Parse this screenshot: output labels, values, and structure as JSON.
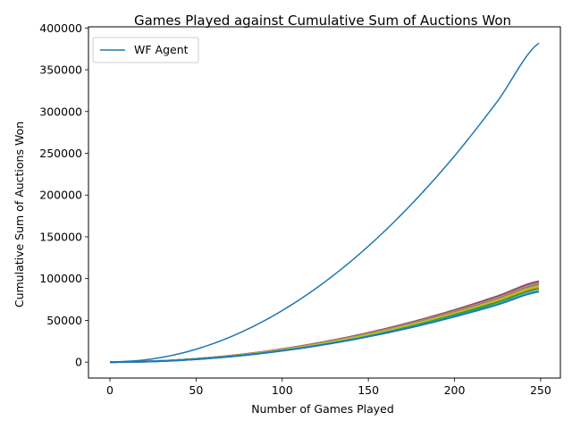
{
  "chart_data": {
    "type": "line",
    "title": "Games Played against Cumulative Sum of Auctions Won",
    "xlabel": "Number of Games Played",
    "ylabel": "Cumulative Sum of Auctions Won",
    "xlim": [
      -12.45,
      261.45
    ],
    "ylim": [
      -19115,
      401415
    ],
    "xticks": [
      0,
      50,
      100,
      150,
      200,
      250
    ],
    "yticks": [
      0,
      50000,
      100000,
      150000,
      200000,
      250000,
      300000,
      350000,
      400000
    ],
    "grid": false,
    "legend": {
      "placement": "top-left",
      "entries": [
        "WF Agent"
      ]
    },
    "series": [
      {
        "name": "WF Agent",
        "color": "#1f77b4",
        "x": [
          0,
          25,
          50,
          75,
          100,
          125,
          150,
          175,
          200,
          225,
          249
        ],
        "y": [
          0,
          3900,
          15400,
          34700,
          61700,
          96400,
          138800,
          189000,
          246800,
          312400,
          382000
        ]
      },
      {
        "color": "#ff7f0e",
        "x": [
          0,
          25,
          50,
          75,
          100,
          125,
          150,
          175,
          200,
          225,
          249
        ],
        "y": [
          0,
          900,
          3600,
          8100,
          14300,
          22400,
          32300,
          43900,
          57400,
          72600,
          89000
        ]
      },
      {
        "color": "#2ca02c",
        "x": [
          0,
          25,
          50,
          75,
          100,
          125,
          150,
          175,
          200,
          225,
          249
        ],
        "y": [
          0,
          900,
          3600,
          8000,
          14100,
          22100,
          31800,
          43300,
          56600,
          71600,
          87700
        ]
      },
      {
        "color": "#d62728",
        "x": [
          0,
          25,
          50,
          75,
          100,
          125,
          150,
          175,
          200,
          225,
          249
        ],
        "y": [
          0,
          970,
          3900,
          8700,
          15500,
          24200,
          34800,
          47400,
          61900,
          78300,
          96000
        ]
      },
      {
        "color": "#9467bd",
        "x": [
          0,
          25,
          50,
          75,
          100,
          125,
          150,
          175,
          200,
          225,
          249
        ],
        "y": [
          0,
          960,
          3850,
          8600,
          15400,
          24000,
          34600,
          47100,
          61500,
          77800,
          95300
        ]
      },
      {
        "color": "#8c564b",
        "x": [
          0,
          25,
          50,
          75,
          100,
          125,
          150,
          175,
          200,
          225,
          249
        ],
        "y": [
          0,
          980,
          3900,
          8800,
          15600,
          24400,
          35100,
          47800,
          62400,
          79000,
          96800
        ]
      },
      {
        "color": "#e377c2",
        "x": [
          0,
          25,
          50,
          75,
          100,
          125,
          150,
          175,
          200,
          225,
          249
        ],
        "y": [
          0,
          950,
          3800,
          8500,
          15200,
          23700,
          34100,
          46500,
          60700,
          76800,
          94200
        ]
      },
      {
        "color": "#7f7f7f",
        "x": [
          0,
          25,
          50,
          75,
          100,
          125,
          150,
          175,
          200,
          225,
          249
        ],
        "y": [
          0,
          940,
          3760,
          8400,
          15000,
          23400,
          33700,
          45900,
          59900,
          75800,
          93000
        ]
      },
      {
        "color": "#bcbd22",
        "x": [
          0,
          25,
          50,
          75,
          100,
          125,
          150,
          175,
          200,
          225,
          249
        ],
        "y": [
          0,
          920,
          3700,
          8300,
          14700,
          23000,
          33100,
          45000,
          58800,
          74400,
          91200
        ]
      },
      {
        "color": "#17becf",
        "x": [
          0,
          25,
          50,
          75,
          100,
          125,
          150,
          175,
          200,
          225,
          249
        ],
        "y": [
          0,
          860,
          3450,
          7700,
          13700,
          21400,
          30800,
          41900,
          54800,
          69300,
          85000
        ]
      },
      {
        "color": "#1f77b4",
        "x": [
          0,
          25,
          50,
          75,
          100,
          125,
          150,
          175,
          200,
          225,
          249
        ],
        "y": [
          0,
          850,
          3400,
          7650,
          13600,
          21200,
          30600,
          41600,
          54400,
          68800,
          84400
        ]
      }
    ]
  }
}
